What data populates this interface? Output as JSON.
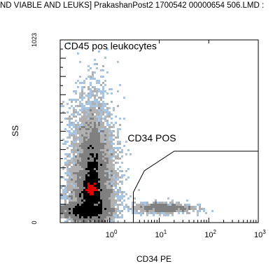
{
  "chart_data": {
    "type": "scatter",
    "title": "ND VIABLE AND LEUKS] PrakashanPost2 1700542 00000654 506.LMD :",
    "xlabel": "CD34 PE",
    "ylabel": "SS",
    "x_scale": "log",
    "xlim": [
      0.1,
      1000
    ],
    "ylim": [
      0,
      1023
    ],
    "x_ticks": [
      {
        "value": 1,
        "base": "10",
        "exp": "0"
      },
      {
        "value": 10,
        "base": "10",
        "exp": "1"
      },
      {
        "value": 100,
        "base": "10",
        "exp": "2"
      },
      {
        "value": 1000,
        "base": "10",
        "exp": "3"
      }
    ],
    "y_ticks": [
      {
        "value": 0,
        "label": "0"
      },
      {
        "value": 1023,
        "label": "1023"
      }
    ],
    "annotations": [
      {
        "text": "CD45 pos leukocytes",
        "x": 0.12,
        "y": 970
      },
      {
        "text": "CD34 POS",
        "x": 2.3,
        "y": 455
      }
    ],
    "gates": [
      {
        "name": "CD34 POS",
        "points": [
          [
            3,
            0
          ],
          [
            3,
            170
          ],
          [
            5,
            290
          ],
          [
            20,
            400
          ],
          [
            1000,
            400
          ]
        ]
      }
    ],
    "density_colors": [
      "#a8c4e0",
      "#b0b0b0",
      "#808080",
      "#000000",
      "#e00000"
    ],
    "populations": [
      {
        "x_center": 0.45,
        "y_center": 185,
        "x_spread_decades": 0.22,
        "y_spread": 230,
        "density_level": 2
      },
      {
        "x_center": 0.45,
        "y_center": 300,
        "x_spread_decades": 0.1,
        "y_spread": 110,
        "density_level": 3
      },
      {
        "x_center": 0.42,
        "y_center": 190,
        "x_spread_decades": 0.08,
        "y_spread": 35,
        "density_level": 4
      },
      {
        "x_center": 0.3,
        "y_center": 65,
        "x_spread_decades": 0.25,
        "y_spread": 22,
        "density_level": 4
      },
      {
        "x_center": 12,
        "y_center": 82,
        "x_spread_decades": 0.3,
        "y_spread": 15,
        "density_level": 2
      }
    ]
  }
}
